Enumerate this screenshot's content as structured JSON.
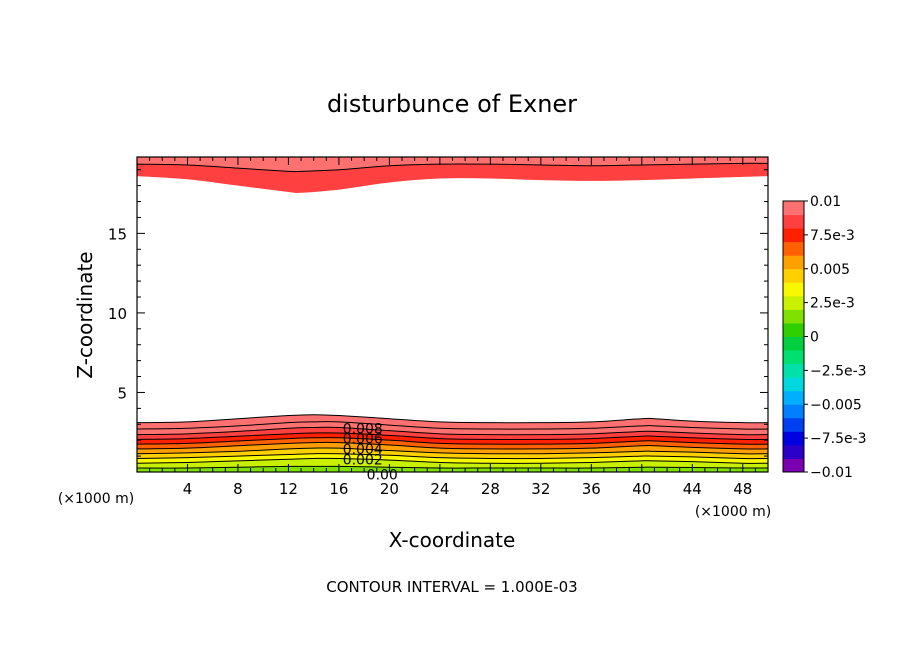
{
  "chart_data": {
    "type": "heatmap",
    "subtype": "filled-contour",
    "title": "disturbunce of Exner",
    "xlabel": "X-coordinate",
    "ylabel": "Z-coordinate",
    "x_unit": "(×1000 m)",
    "x_unit_left": "(×1000 m)",
    "xlim": [
      0,
      50
    ],
    "ylim": [
      0,
      19.8
    ],
    "x_ticks": [
      4,
      8,
      12,
      16,
      20,
      24,
      28,
      32,
      36,
      40,
      44,
      48
    ],
    "x_tick_labels": [
      "4",
      "8",
      "12",
      "16",
      "20",
      "24",
      "28",
      "32",
      "36",
      "40",
      "44",
      "48"
    ],
    "y_ticks": [
      5,
      10,
      15
    ],
    "y_tick_labels": [
      "5",
      "10",
      "15"
    ],
    "contour_interval_text": "CONTOUR INTERVAL = 1.000E-03",
    "contour_labels": [
      "0.008",
      "0.006",
      "0.004",
      "0.002",
      "0.00"
    ],
    "colorbar": {
      "range": [
        -0.01,
        0.01
      ],
      "levels": [
        -0.01,
        -0.009,
        -0.008,
        -0.007,
        -0.006,
        -0.005,
        -0.004,
        -0.003,
        -0.002,
        -0.001,
        0,
        0.001,
        0.002,
        0.003,
        0.004,
        0.005,
        0.006,
        0.007,
        0.008,
        0.009,
        0.01
      ],
      "tick_values": [
        0.01,
        0.0075,
        0.005,
        0.0025,
        0,
        -0.0025,
        -0.005,
        -0.0075,
        -0.01
      ],
      "tick_labels": [
        "0.01",
        "7.5e-3",
        "0.005",
        "2.5e-3",
        "0",
        "−2.5e-3",
        "−0.005",
        "−7.5e-3",
        "−0.01"
      ],
      "colors": [
        "#7a00b0",
        "#2c00c8",
        "#0000e0",
        "#0040f0",
        "#0080ff",
        "#00b0ff",
        "#00d8e0",
        "#00e0a8",
        "#00e070",
        "#00d040",
        "#30d000",
        "#80e000",
        "#c8f000",
        "#f8f800",
        "#ffd000",
        "#ffa000",
        "#ff6000",
        "#ff2000",
        "#ff4040",
        "#ff7070"
      ]
    },
    "bottom_contours_x": [
      0,
      4,
      8,
      12,
      14,
      16,
      20,
      24,
      28,
      32,
      36,
      40,
      41,
      44,
      48,
      50
    ],
    "bottom_contours": [
      {
        "level": 0.001,
        "z": [
          0.25,
          0.25,
          0.3,
          0.35,
          0.35,
          0.35,
          0.3,
          0.25,
          0.25,
          0.25,
          0.25,
          0.3,
          0.3,
          0.28,
          0.25,
          0.25
        ]
      },
      {
        "level": 0.002,
        "z": [
          0.55,
          0.6,
          0.7,
          0.8,
          0.85,
          0.85,
          0.75,
          0.6,
          0.55,
          0.55,
          0.6,
          0.7,
          0.7,
          0.65,
          0.55,
          0.55
        ]
      },
      {
        "level": 0.003,
        "z": [
          0.85,
          0.9,
          1.0,
          1.1,
          1.15,
          1.15,
          1.05,
          0.9,
          0.85,
          0.85,
          0.9,
          1.0,
          1.0,
          0.95,
          0.85,
          0.85
        ]
      },
      {
        "level": 0.004,
        "z": [
          1.15,
          1.2,
          1.3,
          1.45,
          1.5,
          1.5,
          1.35,
          1.2,
          1.15,
          1.15,
          1.2,
          1.3,
          1.3,
          1.25,
          1.15,
          1.15
        ]
      },
      {
        "level": 0.005,
        "z": [
          1.45,
          1.5,
          1.65,
          1.8,
          1.85,
          1.85,
          1.7,
          1.5,
          1.45,
          1.45,
          1.5,
          1.65,
          1.65,
          1.55,
          1.45,
          1.45
        ]
      },
      {
        "level": 0.006,
        "z": [
          1.75,
          1.8,
          1.95,
          2.1,
          2.15,
          2.15,
          2.0,
          1.8,
          1.75,
          1.75,
          1.8,
          1.95,
          1.95,
          1.85,
          1.75,
          1.75
        ]
      },
      {
        "level": 0.007,
        "z": [
          2.05,
          2.1,
          2.25,
          2.4,
          2.45,
          2.45,
          2.3,
          2.1,
          2.05,
          2.05,
          2.1,
          2.25,
          2.25,
          2.15,
          2.05,
          2.05
        ]
      },
      {
        "level": 0.008,
        "z": [
          2.35,
          2.4,
          2.55,
          2.75,
          2.8,
          2.8,
          2.6,
          2.4,
          2.35,
          2.35,
          2.4,
          2.55,
          2.55,
          2.45,
          2.35,
          2.35
        ]
      },
      {
        "level": 0.009,
        "z": [
          2.7,
          2.75,
          2.9,
          3.1,
          3.15,
          3.15,
          2.95,
          2.75,
          2.7,
          2.7,
          2.75,
          2.9,
          2.9,
          2.8,
          2.7,
          2.7
        ]
      },
      {
        "level": 0.0095,
        "z": [
          3.1,
          3.15,
          3.35,
          3.55,
          3.6,
          3.55,
          3.35,
          3.15,
          3.1,
          3.1,
          3.15,
          3.35,
          3.35,
          3.2,
          3.1,
          3.1
        ]
      }
    ],
    "top_contours_x": [
      0,
      4,
      8,
      12,
      13,
      16,
      20,
      24,
      28,
      32,
      36,
      40,
      44,
      48,
      50
    ],
    "top_contours": [
      {
        "level": 0.009,
        "z": [
          19.35,
          19.3,
          19.1,
          18.9,
          18.9,
          19.0,
          19.25,
          19.35,
          19.35,
          19.3,
          19.25,
          19.3,
          19.35,
          19.4,
          19.4
        ]
      },
      {
        "level": 0.008,
        "z": [
          18.6,
          18.4,
          18.0,
          17.6,
          17.55,
          17.75,
          18.2,
          18.45,
          18.45,
          18.35,
          18.3,
          18.35,
          18.45,
          18.55,
          18.6
        ]
      }
    ]
  }
}
